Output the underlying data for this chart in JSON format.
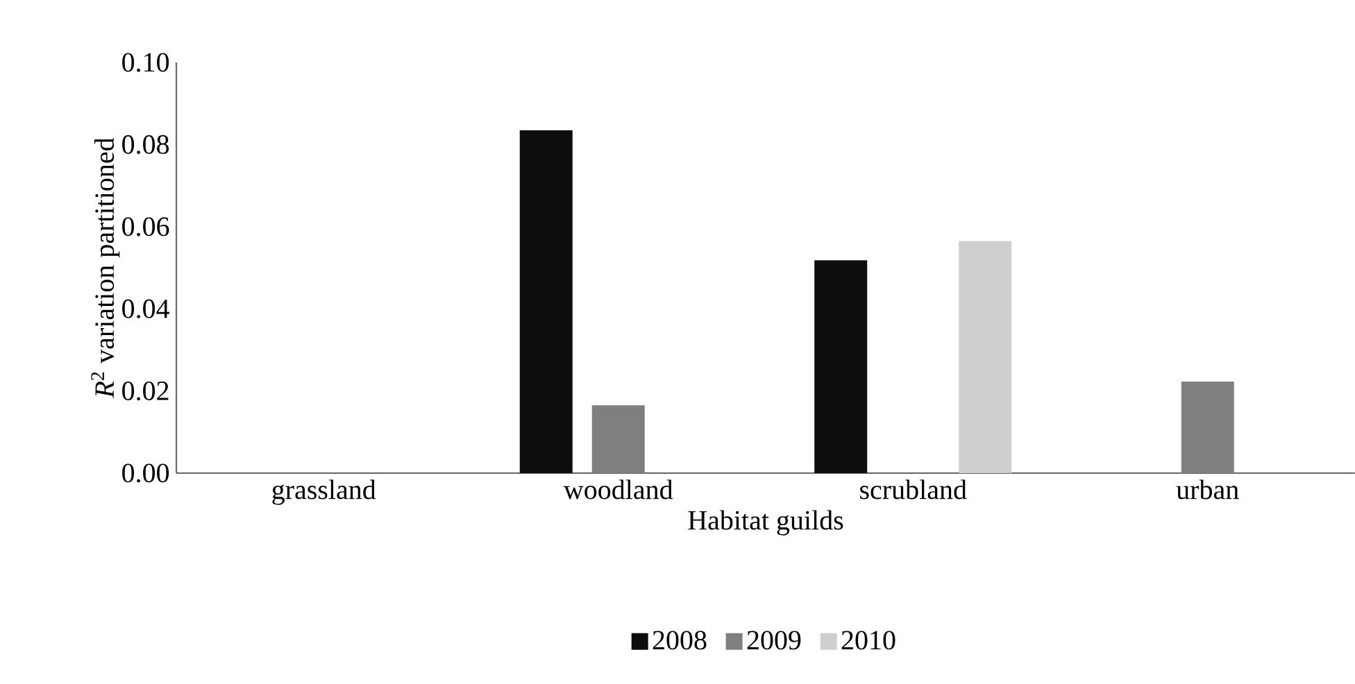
{
  "chart_data": {
    "type": "bar",
    "xlabel": "Habitat guilds",
    "ylabel": "*R*$^{2}$ variation partitioned",
    "categories": [
      "grassland",
      "woodland",
      "scrubland",
      "urban"
    ],
    "series": [
      {
        "name": "2008",
        "color": "#0d0d0d",
        "values": [
          0,
          0.0835,
          0.0518,
          0
        ]
      },
      {
        "name": "2009",
        "color": "#7f7f7f",
        "values": [
          0,
          0.0165,
          0,
          0.0223
        ]
      },
      {
        "name": "2010",
        "color": "#d0cece",
        "values": [
          0,
          0,
          0.0565,
          0
        ]
      }
    ],
    "ylim": [
      0,
      0.1
    ],
    "yticks": [
      {
        "value": 0,
        "label": "0.00"
      },
      {
        "value": 0.02,
        "label": "0.02"
      },
      {
        "value": 0.04,
        "label": "0.04"
      },
      {
        "value": 0.06,
        "label": "0.06"
      },
      {
        "value": 0.08,
        "label": "0.08"
      },
      {
        "value": 0.1,
        "label": "0.10"
      }
    ],
    "grid": false,
    "legend": "bottom"
  }
}
